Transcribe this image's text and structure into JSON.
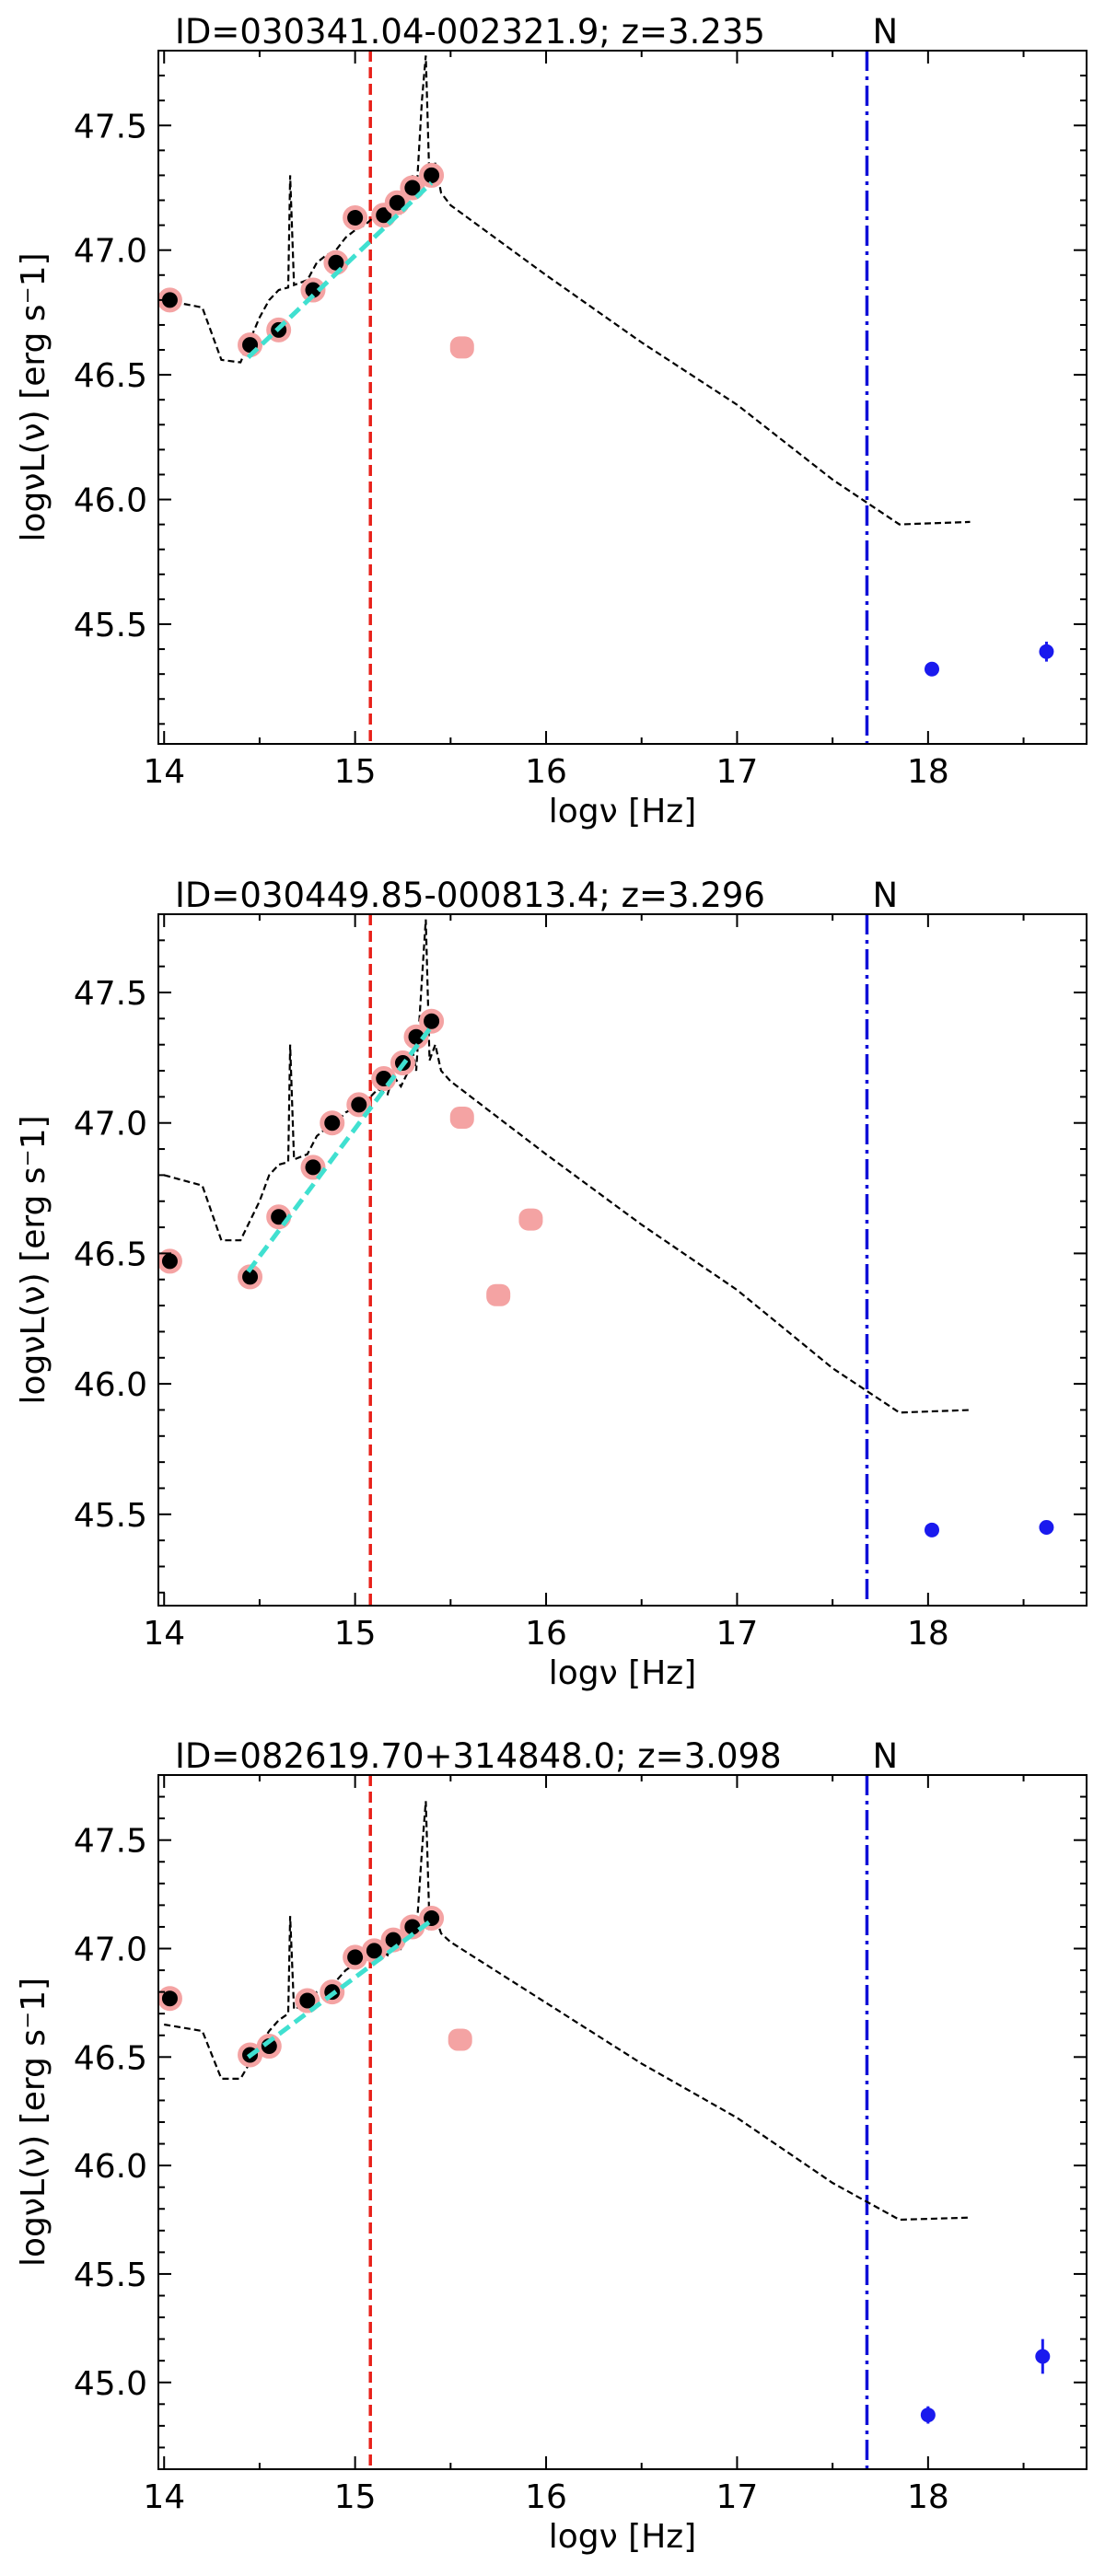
{
  "colors": {
    "template": "#000000",
    "photometry_edge": "#f4a3a3",
    "photometry_fill": "#000000",
    "excluded": "#f4a3a3",
    "fit_line": "#40e0d0",
    "red_line": "#e8211a",
    "blue_line": "#1010d8",
    "xray": "#1a1aee"
  },
  "chart_data": [
    {
      "type": "scatter",
      "title": "ID=030341.04-002321.9; z=3.235",
      "flag": "N",
      "xlabel": "logν [Hz]",
      "ylabel": "logνL(ν) [erg s⁻1]",
      "xlim": [
        13.97,
        18.83
      ],
      "ylim": [
        45.02,
        47.8
      ],
      "xticks": [
        14,
        15,
        16,
        17,
        18
      ],
      "yticks": [
        45.5,
        46.0,
        46.5,
        47.0,
        47.5
      ],
      "red_vline": 15.08,
      "blue_vline": 17.68,
      "template_points": [
        [
          14.0,
          46.8
        ],
        [
          14.2,
          46.77
        ],
        [
          14.3,
          46.56
        ],
        [
          14.4,
          46.55
        ],
        [
          14.5,
          46.73
        ],
        [
          14.55,
          46.8
        ],
        [
          14.6,
          46.84
        ],
        [
          14.65,
          46.85
        ],
        [
          14.66,
          47.3
        ],
        [
          14.68,
          46.86
        ],
        [
          14.75,
          46.88
        ],
        [
          14.8,
          46.95
        ],
        [
          14.85,
          46.98
        ],
        [
          14.9,
          47.0
        ],
        [
          14.95,
          47.05
        ],
        [
          15.0,
          47.08
        ],
        [
          15.05,
          47.1
        ],
        [
          15.08,
          47.12
        ],
        [
          15.12,
          47.15
        ],
        [
          15.17,
          47.12
        ],
        [
          15.2,
          47.2
        ],
        [
          15.24,
          47.15
        ],
        [
          15.28,
          47.22
        ],
        [
          15.3,
          47.3
        ],
        [
          15.32,
          47.21
        ],
        [
          15.35,
          47.6
        ],
        [
          15.37,
          47.78
        ],
        [
          15.39,
          47.26
        ],
        [
          15.42,
          47.35
        ],
        [
          15.45,
          47.23
        ],
        [
          15.5,
          47.18
        ],
        [
          16.0,
          46.9
        ],
        [
          16.5,
          46.63
        ],
        [
          17.0,
          46.38
        ],
        [
          17.5,
          46.08
        ],
        [
          17.85,
          45.9
        ],
        [
          18.22,
          45.91
        ]
      ],
      "photometry": [
        [
          14.03,
          46.8
        ],
        [
          14.45,
          46.62
        ],
        [
          14.6,
          46.68
        ],
        [
          14.78,
          46.84
        ],
        [
          14.9,
          46.95
        ],
        [
          15.0,
          47.13
        ],
        [
          15.15,
          47.14
        ],
        [
          15.22,
          47.19
        ],
        [
          15.3,
          47.25
        ],
        [
          15.4,
          47.3
        ]
      ],
      "excluded": [
        [
          15.56,
          46.61
        ]
      ],
      "fit_line": [
        [
          14.44,
          46.57
        ],
        [
          15.4,
          47.27
        ]
      ],
      "xray": [
        {
          "x": 18.02,
          "y": 45.32,
          "err": 0.02
        },
        {
          "x": 18.62,
          "y": 45.39,
          "err": 0.04
        }
      ]
    },
    {
      "type": "scatter",
      "title": "ID=030449.85-000813.4; z=3.296",
      "flag": "N",
      "xlabel": "logν [Hz]",
      "ylabel": "logνL(ν) [erg s⁻1]",
      "xlim": [
        13.97,
        18.83
      ],
      "ylim": [
        45.15,
        47.8
      ],
      "xticks": [
        14,
        15,
        16,
        17,
        18
      ],
      "yticks": [
        45.5,
        46.0,
        46.5,
        47.0,
        47.5
      ],
      "red_vline": 15.08,
      "blue_vline": 17.68,
      "template_points": [
        [
          14.0,
          46.8
        ],
        [
          14.2,
          46.76
        ],
        [
          14.3,
          46.55
        ],
        [
          14.4,
          46.55
        ],
        [
          14.5,
          46.7
        ],
        [
          14.55,
          46.8
        ],
        [
          14.6,
          46.84
        ],
        [
          14.65,
          46.85
        ],
        [
          14.66,
          47.3
        ],
        [
          14.68,
          46.86
        ],
        [
          14.75,
          46.88
        ],
        [
          14.8,
          46.95
        ],
        [
          14.85,
          46.98
        ],
        [
          14.9,
          47.0
        ],
        [
          14.95,
          47.04
        ],
        [
          15.0,
          47.06
        ],
        [
          15.05,
          47.08
        ],
        [
          15.08,
          47.1
        ],
        [
          15.12,
          47.13
        ],
        [
          15.17,
          47.11
        ],
        [
          15.2,
          47.18
        ],
        [
          15.24,
          47.14
        ],
        [
          15.28,
          47.2
        ],
        [
          15.3,
          47.28
        ],
        [
          15.32,
          47.2
        ],
        [
          15.35,
          47.55
        ],
        [
          15.37,
          47.78
        ],
        [
          15.39,
          47.24
        ],
        [
          15.42,
          47.3
        ],
        [
          15.45,
          47.2
        ],
        [
          15.5,
          47.16
        ],
        [
          16.0,
          46.88
        ],
        [
          16.5,
          46.61
        ],
        [
          17.0,
          46.36
        ],
        [
          17.5,
          46.06
        ],
        [
          17.85,
          45.89
        ],
        [
          18.22,
          45.9
        ]
      ],
      "photometry": [
        [
          14.03,
          46.47
        ],
        [
          14.45,
          46.41
        ],
        [
          14.6,
          46.64
        ],
        [
          14.78,
          46.83
        ],
        [
          14.88,
          47.0
        ],
        [
          15.02,
          47.07
        ],
        [
          15.15,
          47.17
        ],
        [
          15.25,
          47.23
        ],
        [
          15.32,
          47.33
        ],
        [
          15.4,
          47.39
        ]
      ],
      "excluded": [
        [
          15.56,
          47.02
        ],
        [
          15.75,
          46.34
        ],
        [
          15.92,
          46.63
        ]
      ],
      "fit_line": [
        [
          14.44,
          46.43
        ],
        [
          15.4,
          47.37
        ]
      ],
      "xray": [
        {
          "x": 18.02,
          "y": 45.44,
          "err": 0.01
        },
        {
          "x": 18.62,
          "y": 45.45,
          "err": 0.01
        }
      ]
    },
    {
      "type": "scatter",
      "title": "ID=082619.70+314848.0; z=3.098",
      "flag": "N",
      "xlabel": "logν [Hz]",
      "ylabel": "logνL(ν) [erg s⁻1]",
      "xlim": [
        13.97,
        18.83
      ],
      "ylim": [
        44.6,
        47.8
      ],
      "xticks": [
        14,
        15,
        16,
        17,
        18
      ],
      "yticks": [
        45.0,
        45.5,
        46.0,
        46.5,
        47.0,
        47.5
      ],
      "red_vline": 15.08,
      "blue_vline": 17.68,
      "template_points": [
        [
          14.0,
          46.65
        ],
        [
          14.2,
          46.62
        ],
        [
          14.3,
          46.4
        ],
        [
          14.4,
          46.4
        ],
        [
          14.5,
          46.55
        ],
        [
          14.55,
          46.62
        ],
        [
          14.6,
          46.67
        ],
        [
          14.65,
          46.7
        ],
        [
          14.66,
          47.15
        ],
        [
          14.68,
          46.72
        ],
        [
          14.75,
          46.75
        ],
        [
          14.8,
          46.8
        ],
        [
          14.85,
          46.82
        ],
        [
          14.9,
          46.85
        ],
        [
          14.95,
          46.9
        ],
        [
          15.0,
          46.93
        ],
        [
          15.05,
          46.95
        ],
        [
          15.08,
          46.97
        ],
        [
          15.12,
          47.0
        ],
        [
          15.17,
          46.97
        ],
        [
          15.2,
          47.05
        ],
        [
          15.24,
          47.0
        ],
        [
          15.28,
          47.07
        ],
        [
          15.3,
          47.15
        ],
        [
          15.32,
          47.06
        ],
        [
          15.35,
          47.45
        ],
        [
          15.37,
          47.68
        ],
        [
          15.39,
          47.1
        ],
        [
          15.42,
          47.15
        ],
        [
          15.45,
          47.07
        ],
        [
          15.5,
          47.03
        ],
        [
          16.0,
          46.75
        ],
        [
          16.5,
          46.47
        ],
        [
          17.0,
          46.22
        ],
        [
          17.5,
          45.92
        ],
        [
          17.85,
          45.75
        ],
        [
          18.22,
          45.76
        ]
      ],
      "photometry": [
        [
          14.03,
          46.77
        ],
        [
          14.45,
          46.51
        ],
        [
          14.55,
          46.55
        ],
        [
          14.75,
          46.76
        ],
        [
          14.88,
          46.8
        ],
        [
          15.0,
          46.96
        ],
        [
          15.1,
          46.99
        ],
        [
          15.2,
          47.04
        ],
        [
          15.3,
          47.1
        ],
        [
          15.4,
          47.14
        ]
      ],
      "excluded": [
        [
          15.55,
          46.58
        ]
      ],
      "fit_line": [
        [
          14.44,
          46.5
        ],
        [
          15.4,
          47.13
        ]
      ],
      "xray": [
        {
          "x": 18.0,
          "y": 44.85,
          "err": 0.04
        },
        {
          "x": 18.6,
          "y": 45.12,
          "err": 0.08
        }
      ]
    }
  ]
}
